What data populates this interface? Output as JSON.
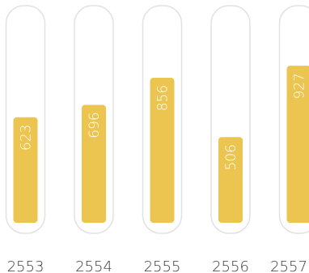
{
  "chart_data": {
    "type": "bar",
    "orientation": "vertical",
    "categories": [
      "2553",
      "2554",
      "2555",
      "2556",
      "2557"
    ],
    "values": [
      623,
      696,
      856,
      506,
      927
    ],
    "data_labels": [
      "623",
      "696",
      "856",
      "506",
      "927"
    ],
    "ylim": [
      0,
      1100
    ],
    "grid": false,
    "legend": "none",
    "colors": {
      "bar": "#ECC550",
      "track_border": "#E2E2E2",
      "track_fill": "#FFFFFF",
      "label_text": "#FFFFFF",
      "category_text": "#3A3A3A"
    }
  }
}
